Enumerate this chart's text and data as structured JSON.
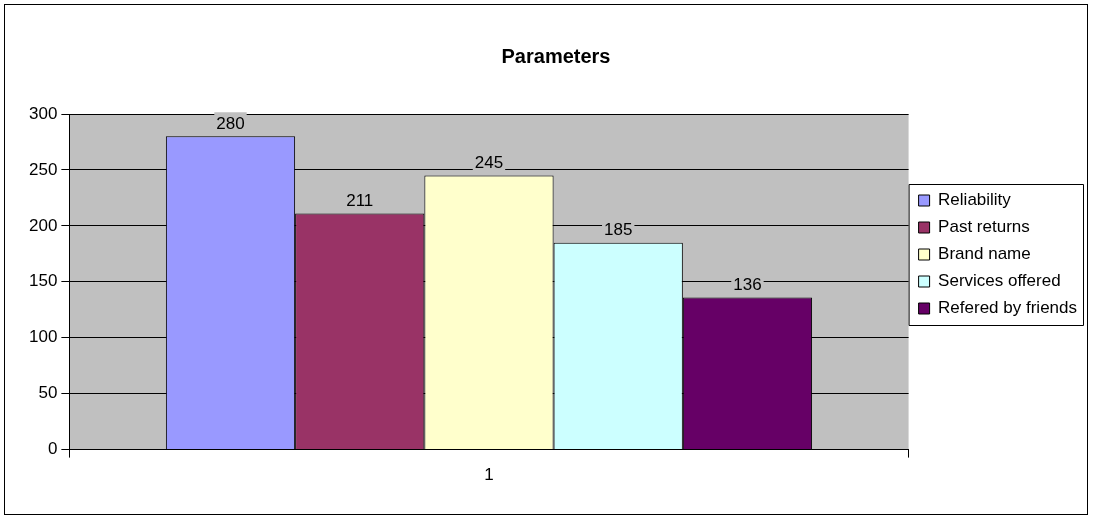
{
  "chart_data": {
    "type": "bar",
    "title": "Parameters",
    "categories": [
      "1"
    ],
    "series": [
      {
        "name": "Reliability",
        "color": "#9999ff",
        "values": [
          280
        ]
      },
      {
        "name": "Past returns",
        "color": "#993366",
        "values": [
          211
        ]
      },
      {
        "name": "Brand name",
        "color": "#ffffcc",
        "values": [
          245
        ]
      },
      {
        "name": "Services offered",
        "color": "#ccffff",
        "values": [
          185
        ]
      },
      {
        "name": "Refered by friends",
        "color": "#660066",
        "values": [
          136
        ]
      }
    ],
    "ylim": [
      0,
      300
    ],
    "yticks": [
      0,
      50,
      100,
      150,
      200,
      250,
      300
    ],
    "grid": "y",
    "legend": "right",
    "data_labels": true
  }
}
